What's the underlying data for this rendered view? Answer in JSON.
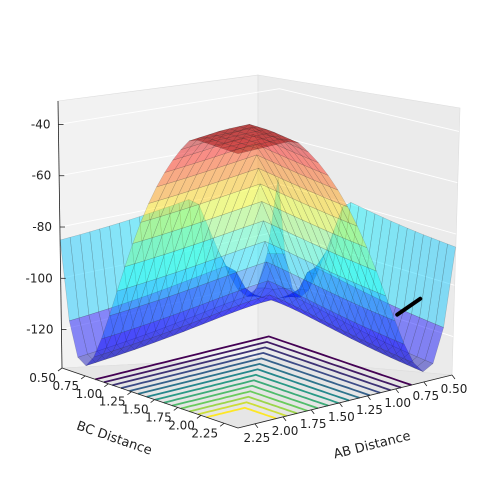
{
  "chart_data": {
    "type": "surface3d",
    "title": "",
    "xlabel": "AB Distance",
    "ylabel": "BC Distance",
    "zlabel": "",
    "x_ticks": [
      "2.25",
      "2.00",
      "1.75",
      "1.50",
      "1.25",
      "1.00",
      "0.75",
      "0.50"
    ],
    "y_ticks": [
      "0.50",
      "0.75",
      "1.00",
      "1.25",
      "1.50",
      "1.75",
      "2.00",
      "2.25"
    ],
    "z_ticks": [
      "-40",
      "-60",
      "-80",
      "-100",
      "-120"
    ],
    "xlim": [
      0.5,
      2.4
    ],
    "ylim": [
      0.5,
      2.4
    ],
    "zlim": [
      -135,
      -25
    ],
    "colormap_surface": "jet",
    "colormap_contour": "viridis",
    "grid": true,
    "trajectory": {
      "color": "#000000",
      "x_range": [
        0.8,
        1.0
      ],
      "y": 2.4,
      "z_range": [
        -102,
        -106
      ]
    }
  }
}
